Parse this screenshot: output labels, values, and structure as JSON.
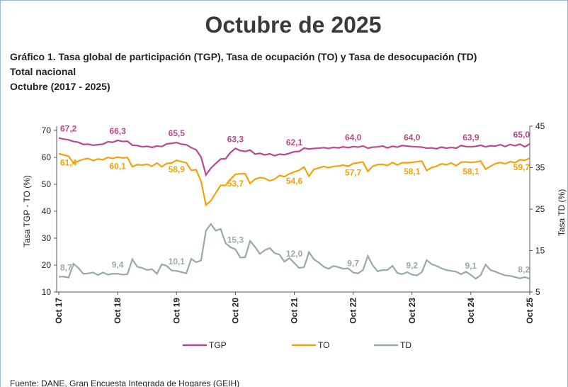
{
  "chart_data": {
    "type": "line",
    "title": "Octubre de 2025",
    "subtitle": [
      "Gráfico 1. Tasa global de participación (TGP), Tasa de ocupación (TO) y Tasa de desocupación (TD)",
      "Total nacional",
      "Octubre (2017 - 2025)"
    ],
    "ylabel": "Tasa TGP - TO (%)",
    "y2label": "Tasa TD (%)",
    "source": "Fuente: DANE, Gran Encuesta Integrada de Hogares (GEIH)",
    "ylim": [
      10,
      70
    ],
    "yticks": [
      10,
      20,
      30,
      40,
      50,
      60,
      70
    ],
    "y2lim": [
      5,
      45
    ],
    "y2ticks": [
      5,
      15,
      25,
      35,
      45
    ],
    "legend": "bottom",
    "categories": [
      "Oct 17",
      null,
      null,
      null,
      null,
      null,
      null,
      null,
      null,
      null,
      null,
      null,
      "Oct 18",
      null,
      null,
      null,
      null,
      null,
      null,
      null,
      null,
      null,
      null,
      null,
      "Oct 19",
      null,
      null,
      null,
      null,
      null,
      null,
      null,
      null,
      null,
      null,
      null,
      "Oct 20",
      null,
      null,
      null,
      null,
      null,
      null,
      null,
      null,
      null,
      null,
      null,
      "Oct 21",
      null,
      null,
      null,
      null,
      null,
      null,
      null,
      null,
      null,
      null,
      null,
      "Oct 22",
      null,
      null,
      null,
      null,
      null,
      null,
      null,
      null,
      null,
      null,
      null,
      "Oct 23",
      null,
      null,
      null,
      null,
      null,
      null,
      null,
      null,
      null,
      null,
      null,
      "Oct 24",
      null,
      null,
      null,
      null,
      null,
      null,
      null,
      null,
      null,
      null,
      null,
      "Oct 25"
    ],
    "series": [
      {
        "name": "TGP",
        "color": "#b84a8c",
        "axis": "y",
        "values": [
          67.2,
          66.8,
          66.5,
          65.9,
          65.6,
          64.8,
          64.9,
          64.5,
          64.7,
          64.9,
          65.8,
          65.6,
          66.3,
          65.9,
          66.0,
          64.5,
          64.4,
          63.9,
          64.1,
          63.7,
          64.2,
          64.0,
          65.0,
          65.2,
          65.5,
          64.9,
          64.7,
          63.6,
          62.8,
          60.1,
          53.5,
          56.0,
          57.7,
          59.4,
          59.5,
          61.8,
          63.3,
          62.5,
          62.2,
          62.7,
          61.2,
          61.5,
          60.9,
          61.3,
          60.6,
          61.2,
          61.0,
          61.5,
          62.1,
          62.2,
          63.4,
          63.1,
          63.3,
          63.4,
          63.6,
          63.3,
          63.7,
          63.5,
          63.9,
          63.6,
          64.0,
          63.8,
          64.2,
          63.4,
          63.8,
          63.9,
          64.2,
          63.5,
          64.1,
          63.8,
          64.4,
          64.2,
          64.0,
          63.9,
          63.8,
          63.4,
          63.5,
          63.2,
          63.8,
          63.4,
          63.7,
          63.4,
          64.4,
          64.0,
          63.9,
          64.1,
          64.5,
          63.9,
          64.3,
          64.2,
          64.7,
          64.0,
          64.8,
          64.3,
          64.9,
          63.9,
          65.0
        ],
        "value_labels": [
          "67,2",
          null,
          null,
          null,
          null,
          null,
          null,
          null,
          null,
          null,
          null,
          null,
          "66,3",
          null,
          null,
          null,
          null,
          null,
          null,
          null,
          null,
          null,
          null,
          null,
          "65,5",
          null,
          null,
          null,
          null,
          null,
          null,
          null,
          null,
          null,
          null,
          null,
          "63,3",
          null,
          null,
          null,
          null,
          null,
          null,
          null,
          null,
          null,
          null,
          null,
          "62,1",
          null,
          null,
          null,
          null,
          null,
          null,
          null,
          null,
          null,
          null,
          null,
          "64,0",
          null,
          null,
          null,
          null,
          null,
          null,
          null,
          null,
          null,
          null,
          null,
          "64,0",
          null,
          null,
          null,
          null,
          null,
          null,
          null,
          null,
          null,
          null,
          null,
          "63,9",
          null,
          null,
          null,
          null,
          null,
          null,
          null,
          null,
          null,
          null,
          null,
          "65,0"
        ]
      },
      {
        "name": "TO",
        "color": "#f0a30a",
        "axis": "y",
        "values": [
          61.4,
          60.9,
          60.4,
          57.9,
          58.6,
          59.3,
          59.6,
          58.8,
          59.4,
          59.1,
          60.0,
          59.6,
          60.1,
          59.8,
          59.9,
          56.5,
          57.3,
          57.1,
          57.4,
          56.7,
          57.9,
          56.5,
          57.7,
          57.9,
          58.9,
          58.4,
          58.0,
          55.2,
          55.4,
          51.1,
          42.3,
          43.9,
          46.8,
          49.6,
          49.6,
          51.9,
          53.7,
          53.9,
          53.9,
          50.3,
          51.9,
          52.5,
          52.2,
          51.3,
          51.9,
          53.3,
          52.8,
          53.9,
          54.6,
          55.2,
          56.4,
          53.0,
          55.5,
          56.1,
          56.6,
          56.2,
          56.6,
          56.8,
          57.1,
          56.7,
          57.7,
          58.0,
          58.3,
          54.8,
          56.7,
          57.3,
          57.4,
          57.0,
          58.1,
          57.2,
          58.0,
          58.0,
          58.1,
          58.4,
          58.6,
          55.1,
          56.2,
          56.7,
          57.6,
          57.3,
          57.9,
          56.9,
          58.2,
          58.3,
          58.1,
          58.3,
          58.6,
          55.6,
          56.7,
          57.7,
          58.1,
          57.6,
          58.4,
          58.0,
          59.1,
          58.9,
          59.7
        ],
        "value_labels": [
          "61,4",
          null,
          null,
          null,
          null,
          null,
          null,
          null,
          null,
          null,
          null,
          null,
          "60,1",
          null,
          null,
          null,
          null,
          null,
          null,
          null,
          null,
          null,
          null,
          null,
          "58,9",
          null,
          null,
          null,
          null,
          null,
          null,
          null,
          null,
          null,
          null,
          null,
          "53,7",
          null,
          null,
          null,
          null,
          null,
          null,
          null,
          null,
          null,
          null,
          null,
          "54,6",
          null,
          null,
          null,
          null,
          null,
          null,
          null,
          null,
          null,
          null,
          null,
          "57,7",
          null,
          null,
          null,
          null,
          null,
          null,
          null,
          null,
          null,
          null,
          null,
          "58,1",
          null,
          null,
          null,
          null,
          null,
          null,
          null,
          null,
          null,
          null,
          null,
          "58,1",
          null,
          null,
          null,
          null,
          null,
          null,
          null,
          null,
          null,
          null,
          null,
          "59,7"
        ]
      },
      {
        "name": "TD",
        "color": "#98aba3",
        "axis": "y2",
        "values": [
          8.7,
          8.7,
          8.5,
          11.8,
          10.8,
          9.4,
          9.5,
          9.7,
          9.1,
          9.7,
          9.2,
          9.4,
          9.4,
          9.2,
          9.3,
          12.9,
          11.1,
          10.8,
          10.3,
          10.5,
          9.4,
          11.7,
          11.3,
          10.2,
          10.1,
          9.8,
          9.5,
          13.0,
          12.2,
          12.6,
          19.8,
          21.4,
          19.8,
          20.2,
          16.8,
          15.8,
          15.3,
          13.3,
          13.4,
          17.3,
          15.9,
          14.2,
          15.1,
          15.6,
          14.4,
          14.0,
          12.3,
          13.2,
          12.0,
          10.8,
          11.0,
          14.6,
          12.9,
          12.1,
          11.1,
          10.6,
          11.3,
          11.0,
          10.6,
          10.7,
          9.7,
          9.5,
          10.3,
          13.7,
          11.4,
          10.0,
          10.3,
          10.3,
          11.3,
          9.6,
          9.3,
          9.8,
          9.2,
          9.0,
          9.8,
          12.7,
          11.7,
          11.3,
          10.7,
          10.3,
          10.1,
          9.9,
          9.3,
          9.9,
          9.1,
          8.2,
          9.1,
          11.6,
          10.3,
          9.9,
          9.4,
          9.0,
          8.9,
          8.6,
          8.3,
          8.6,
          8.2
        ],
        "value_labels": [
          "8,7",
          null,
          null,
          null,
          null,
          null,
          null,
          null,
          null,
          null,
          null,
          null,
          "9,4",
          null,
          null,
          null,
          null,
          null,
          null,
          null,
          null,
          null,
          null,
          null,
          "10,1",
          null,
          null,
          null,
          null,
          null,
          null,
          null,
          null,
          null,
          null,
          null,
          "15,3",
          null,
          null,
          null,
          null,
          null,
          null,
          null,
          null,
          null,
          null,
          null,
          "12,0",
          null,
          null,
          null,
          null,
          null,
          null,
          null,
          null,
          null,
          null,
          null,
          "9,7",
          null,
          null,
          null,
          null,
          null,
          null,
          null,
          null,
          null,
          null,
          null,
          "9,2",
          null,
          null,
          null,
          null,
          null,
          null,
          null,
          null,
          null,
          null,
          null,
          "9,1",
          null,
          null,
          null,
          null,
          null,
          null,
          null,
          null,
          null,
          null,
          null,
          "8,2"
        ]
      }
    ]
  }
}
